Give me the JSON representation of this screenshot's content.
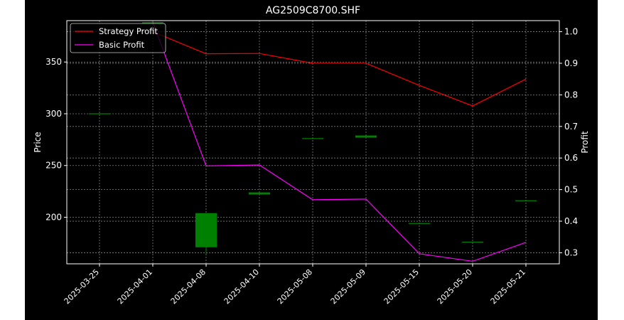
{
  "chart_data": {
    "type": "candlestick+line",
    "title": "AG2509C8700.SHF",
    "ylabel_left": "Price",
    "ylabel_right": "Profit",
    "categories": [
      "2025-03-25",
      "2025-04-01",
      "2025-04-08",
      "2025-04-10",
      "2025-05-08",
      "2025-05-09",
      "2025-05-15",
      "2025-05-20",
      "2025-05-21"
    ],
    "ylim_left": [
      155,
      390
    ],
    "yticks_left": [
      200,
      250,
      300,
      350
    ],
    "ylim_right": [
      0.265,
      1.035
    ],
    "yticks_right": [
      0.3,
      0.4,
      0.5,
      0.6,
      0.7,
      0.8,
      0.9,
      1.0
    ],
    "grid": true,
    "legend_position": "top-left",
    "candles": [
      {
        "date": "2025-03-25",
        "open": 300,
        "high": 300,
        "low": 300,
        "close": 300
      },
      {
        "date": "2025-04-01",
        "open": 388,
        "high": 388,
        "low": 388,
        "close": 388
      },
      {
        "date": "2025-04-08",
        "open": 171,
        "high": 204,
        "low": 164,
        "close": 204
      },
      {
        "date": "2025-04-10",
        "open": 222,
        "high": 224,
        "low": 222,
        "close": 224
      },
      {
        "date": "2025-05-08",
        "open": 276,
        "high": 276,
        "low": 276,
        "close": 276
      },
      {
        "date": "2025-05-09",
        "open": 277,
        "high": 279,
        "low": 277,
        "close": 279
      },
      {
        "date": "2025-05-15",
        "open": 194,
        "high": 194,
        "low": 194,
        "close": 194
      },
      {
        "date": "2025-05-20",
        "open": 176,
        "high": 176,
        "low": 176,
        "close": 176
      },
      {
        "date": "2025-05-21",
        "open": 216,
        "high": 216,
        "low": 216,
        "close": 216
      }
    ],
    "series": [
      {
        "name": "Strategy Profit",
        "color": "#ff0000",
        "values": [
          null,
          1.0,
          0.93,
          0.931,
          0.9,
          0.9,
          0.83,
          0.765,
          0.85
        ]
      },
      {
        "name": "Basic Profit",
        "color": "#ff00ff",
        "values": [
          null,
          1.03,
          0.575,
          0.578,
          0.468,
          0.47,
          0.297,
          0.273,
          0.333
        ]
      }
    ],
    "colors": {
      "up": "#008000",
      "down": "#ff0000",
      "background": "#000000",
      "grid": "#808080",
      "text": "#ffffff"
    }
  }
}
